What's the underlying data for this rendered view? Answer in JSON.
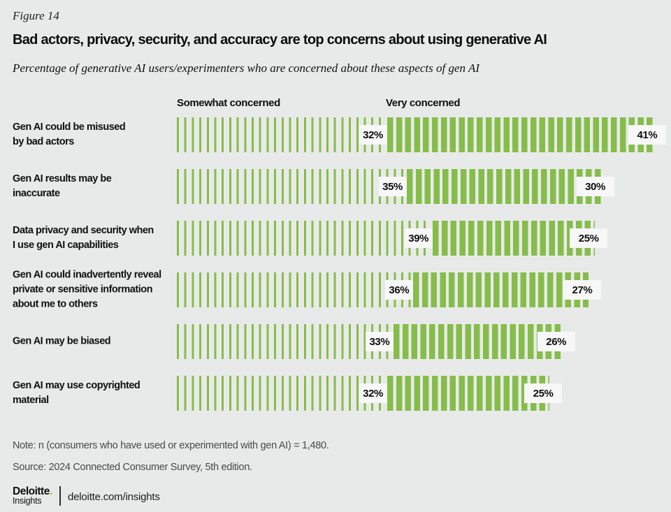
{
  "figure_label": "Figure 14",
  "title": "Bad actors, privacy, security, and accuracy are top concerns about using generative AI",
  "subtitle": "Percentage of generative AI users/experimenters who are concerned about these aspects of gen AI",
  "note": "Note: n (consumers who have used or experimented with gen AI) = 1,480.",
  "source": "Source: 2024 Connected Consumer Survey, 5th edition.",
  "footer": {
    "brand": "Deloitte",
    "brand_dot": ".",
    "brand_sub": "Insights",
    "url": "deloitte.com/insights"
  },
  "colors": {
    "background": "#e8eae9",
    "bar_green": "#86bd4a",
    "deloitte_green": "#86bc25",
    "label_box_bg": "#f6f7f6",
    "text_gray": "#47494b"
  },
  "chart_data": {
    "type": "bar",
    "orientation": "horizontal",
    "unit": "%",
    "legend_position": "top",
    "grid": false,
    "xlim": [
      0,
      45
    ],
    "title": "Bad actors, privacy, security, and accuracy are top concerns about using generative AI",
    "subtitle": "Percentage of generative AI users/experimenters who are concerned about these aspects of gen AI",
    "categories": [
      [
        "Gen AI could be misused",
        "by bad actors"
      ],
      [
        "Gen AI results may be",
        "inaccurate"
      ],
      [
        "Data privacy and security when",
        "I use gen AI capabilities"
      ],
      [
        "Gen AI could inadvertently reveal",
        "private or sensitive information",
        "about me to others"
      ],
      [
        "Gen AI may be biased"
      ],
      [
        "Gen AI may use copyrighted",
        "material"
      ]
    ],
    "series": [
      {
        "name": "Somewhat concerned",
        "values": [
          32,
          35,
          39,
          36,
          33,
          32
        ]
      },
      {
        "name": "Very concerned",
        "values": [
          41,
          30,
          25,
          27,
          26,
          25
        ]
      }
    ]
  }
}
